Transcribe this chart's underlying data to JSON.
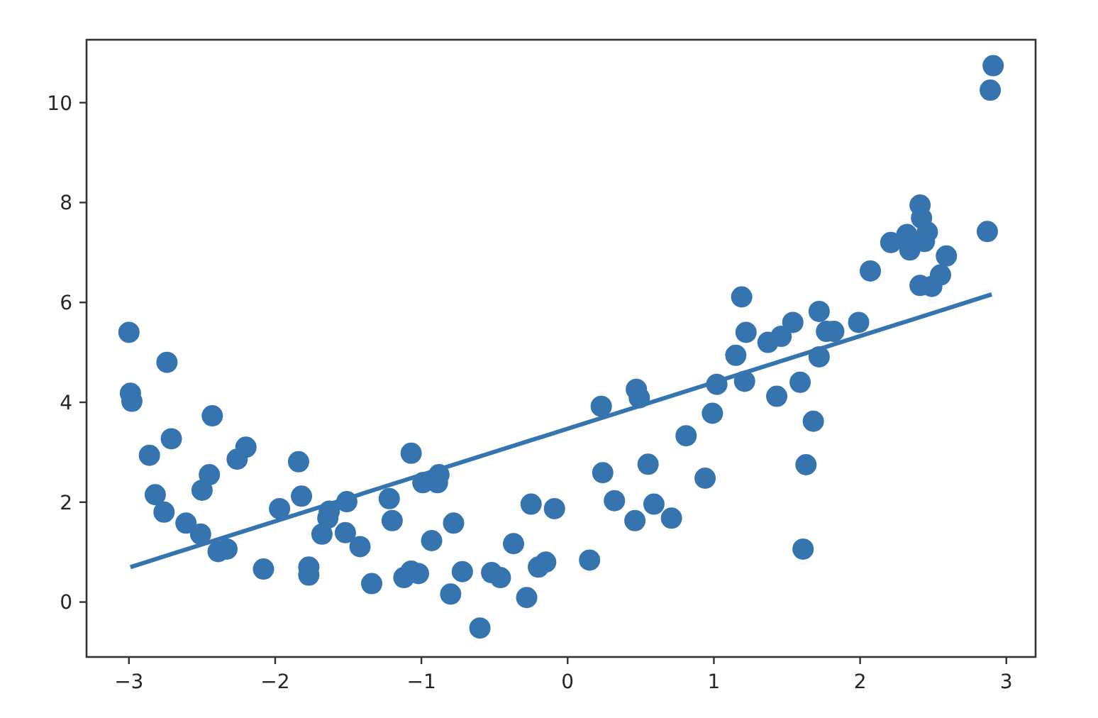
{
  "chart_data": {
    "type": "scatter",
    "xlim": [
      -3.29,
      3.2
    ],
    "ylim": [
      -1.1,
      11.26
    ],
    "xticks": [
      {
        "value": -3,
        "label": "−3"
      },
      {
        "value": -2,
        "label": "−2"
      },
      {
        "value": -1,
        "label": "−1"
      },
      0,
      1,
      2,
      3
    ],
    "yticks": [
      0,
      2,
      4,
      6,
      8,
      10
    ],
    "series": [
      {
        "color": "#3674b0",
        "marker": "circle",
        "x": [
          -3.0,
          -2.99,
          -2.98,
          -2.74,
          -2.86,
          -2.71,
          -2.82,
          -2.76,
          -2.61,
          -2.51,
          -2.43,
          -2.5,
          -2.45,
          -2.39,
          -2.33,
          -2.26,
          -2.2,
          -2.08,
          -1.97,
          -1.84,
          -1.82,
          -1.77,
          -1.77,
          -1.68,
          -1.64,
          -1.63,
          -1.51,
          -1.52,
          -1.42,
          -1.34,
          -1.22,
          -1.2,
          -1.12,
          -1.07,
          -1.02,
          -1.07,
          -0.99,
          -0.89,
          -0.88,
          -0.93,
          -0.78,
          -0.8,
          -0.72,
          -0.6,
          -0.52,
          -0.46,
          -0.37,
          -0.28,
          -0.25,
          -0.2,
          -0.15,
          -0.09,
          0.15,
          0.23,
          0.24,
          0.32,
          0.47,
          0.49,
          0.46,
          0.55,
          0.59,
          0.71,
          0.81,
          0.94,
          0.99,
          1.02,
          1.15,
          1.19,
          1.22,
          1.21,
          1.37,
          1.46,
          1.43,
          1.54,
          1.59,
          1.61,
          1.63,
          1.68,
          1.72,
          1.72,
          1.77,
          1.82,
          1.99,
          2.07,
          2.21,
          2.32,
          2.34,
          2.41,
          2.42,
          2.46,
          2.44,
          2.59,
          2.55,
          2.49,
          2.41,
          2.87,
          2.89,
          2.91
        ],
        "values": [
          5.4,
          4.18,
          4.02,
          4.8,
          2.94,
          3.27,
          2.15,
          1.8,
          1.58,
          1.36,
          3.73,
          2.24,
          2.55,
          1.01,
          1.06,
          2.86,
          3.1,
          0.66,
          1.87,
          2.81,
          2.12,
          0.7,
          0.54,
          1.36,
          1.68,
          1.82,
          2.01,
          1.39,
          1.11,
          0.37,
          2.07,
          1.63,
          0.49,
          0.62,
          0.57,
          2.98,
          2.39,
          2.39,
          2.55,
          1.23,
          1.58,
          0.16,
          0.61,
          -0.52,
          0.59,
          0.49,
          1.17,
          0.09,
          1.96,
          0.7,
          0.8,
          1.87,
          0.84,
          3.92,
          2.59,
          2.03,
          4.26,
          4.09,
          1.63,
          2.76,
          1.96,
          1.68,
          3.33,
          2.48,
          3.78,
          4.36,
          4.94,
          6.11,
          5.4,
          4.42,
          5.2,
          5.32,
          4.12,
          5.6,
          4.4,
          1.06,
          2.75,
          3.62,
          5.82,
          4.91,
          5.42,
          5.42,
          5.6,
          6.63,
          7.2,
          7.36,
          7.05,
          7.95,
          7.69,
          7.41,
          7.22,
          6.93,
          6.55,
          6.32,
          6.34,
          7.42,
          10.25,
          10.74
        ]
      },
      {
        "type": "line",
        "color": "#3674b0",
        "x": [
          -2.99,
          2.9
        ],
        "values": [
          0.7,
          6.16
        ]
      }
    ]
  }
}
